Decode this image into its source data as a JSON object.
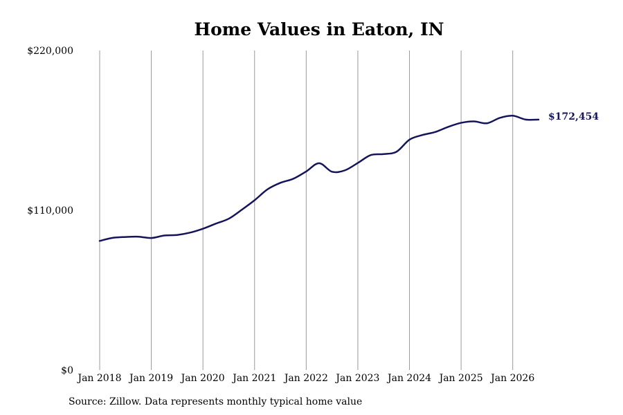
{
  "chart_data": {
    "type": "line",
    "title": "Home Values in Eaton, IN",
    "xlabel": "",
    "ylabel": "",
    "x_tick_labels": [
      "Jan 2018",
      "Jan 2019",
      "Jan 2020",
      "Jan 2021",
      "Jan 2022",
      "Jan 2023",
      "Jan 2024",
      "Jan 2025",
      "Jan 2026"
    ],
    "y_tick_labels": [
      "$0",
      "$110,000",
      "$220,000"
    ],
    "y_ticks": [
      0,
      110000,
      220000
    ],
    "ylim": [
      0,
      220000
    ],
    "xlim": [
      "2018-01",
      "2026-07"
    ],
    "grid": "vertical lines at each January",
    "line_color": "#14145a",
    "end_label": "$172,454",
    "series": [
      {
        "x": [
          "2018-01",
          "2018-04",
          "2018-07",
          "2018-10",
          "2019-01",
          "2019-04",
          "2019-07",
          "2019-10",
          "2020-01",
          "2020-04",
          "2020-07",
          "2020-10",
          "2021-01",
          "2021-04",
          "2021-07",
          "2021-10",
          "2022-01",
          "2022-04",
          "2022-07",
          "2022-10",
          "2023-01",
          "2023-04",
          "2023-07",
          "2023-10",
          "2024-01",
          "2024-04",
          "2024-07",
          "2024-10",
          "2025-01",
          "2025-04",
          "2025-07",
          "2025-10",
          "2026-01",
          "2026-04",
          "2026-07"
        ],
        "values": [
          88900,
          91000,
          91600,
          91800,
          90900,
          92600,
          93000,
          94600,
          97300,
          100800,
          104200,
          110300,
          116900,
          124400,
          128900,
          131700,
          136700,
          142400,
          136500,
          137500,
          142600,
          148000,
          148700,
          150300,
          158600,
          161800,
          163900,
          167400,
          170200,
          171200,
          169900,
          173600,
          175100,
          172454,
          172454
        ]
      }
    ]
  },
  "source": "Source: Zillow. Data represents monthly typical home value"
}
